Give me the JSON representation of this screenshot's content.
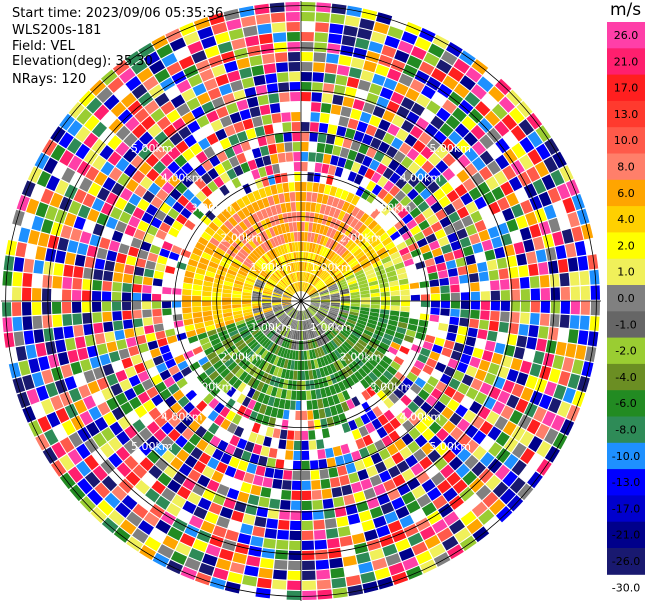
{
  "header": {
    "start_time": "Start time: 2023/09/06 05:35:36",
    "instrument": "WLS200s-181",
    "field": "Field: VEL",
    "elevation": "Elevation(deg): 35.30",
    "nrays": "NRays: 120"
  },
  "colorbar": {
    "unit": "m/s",
    "labels": [
      "26.0",
      "21.0",
      "17.0",
      "13.0",
      "10.0",
      "8.0",
      "6.0",
      "4.0",
      "2.0",
      "1.0",
      "0.0",
      "-1.0",
      "-2.0",
      "-4.0",
      "-6.0",
      "-8.0",
      "-10.0",
      "-13.0",
      "-17.0",
      "-21.0",
      "-26.0",
      "-30.0"
    ],
    "colors": [
      "#ff3fa8",
      "#ff1f6e",
      "#ff1f1f",
      "#ff3a2e",
      "#ff5a4a",
      "#ff7f6a",
      "#ffa500",
      "#ffd000",
      "#ffff00",
      "#f0f05a",
      "#808080",
      "#666666",
      "#9acd32",
      "#6b8e23",
      "#228b22",
      "#2e8b57",
      "#1e90ff",
      "#0000ff",
      "#0000cd",
      "#00008b",
      "#191970"
    ]
  },
  "range_ring_labels": [
    "1.00km",
    "2.00km",
    "3.00km",
    "4.00km",
    "5.00km"
  ],
  "plot": {
    "inner_field": "wind velocity PPI, yellow/orange north and west, green south-east",
    "outer_field": "noisy multicolor returns beyond ~2.5 km"
  }
}
